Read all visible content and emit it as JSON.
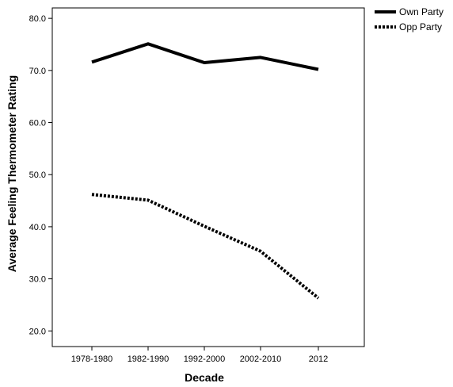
{
  "chart_data": {
    "type": "line",
    "title": "",
    "xlabel": "Decade",
    "ylabel": "Average Feeling Thermometer Rating",
    "categories": [
      "1978-1980",
      "1982-1990",
      "1992-2000",
      "2002-2010",
      "2012"
    ],
    "ylim": [
      17,
      82
    ],
    "yticks": [
      "20.0",
      "30.0",
      "40.0",
      "50.0",
      "60.0",
      "70.0",
      "80.0"
    ],
    "grid": false,
    "legend_position": "top-right, outside plot",
    "series": [
      {
        "name": "Own Party",
        "values": [
          71.6,
          75.1,
          71.5,
          72.5,
          70.2
        ],
        "style": "solid",
        "color": "#000000"
      },
      {
        "name": "Opp Party",
        "values": [
          46.2,
          45.1,
          40.1,
          35.3,
          26.3
        ],
        "style": "dotted",
        "color": "#000000"
      }
    ]
  }
}
